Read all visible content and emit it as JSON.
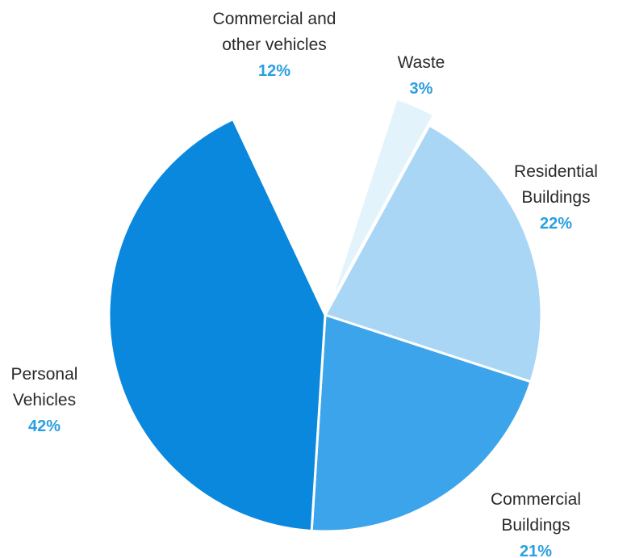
{
  "chart_data": {
    "type": "pie",
    "title": "",
    "slices": [
      {
        "label_lines": [
          "Waste"
        ],
        "value_label": "3%",
        "value": 3,
        "color": "#e3f3fc",
        "exploded": true
      },
      {
        "label_lines": [
          "Residential",
          "Buildings"
        ],
        "value_label": "22%",
        "value": 22,
        "color": "#a9d6f5",
        "exploded": false
      },
      {
        "label_lines": [
          "Commercial",
          "Buildings"
        ],
        "value_label": "21%",
        "value": 21,
        "color": "#3ca4ea",
        "exploded": false
      },
      {
        "label_lines": [
          "Personal",
          "Vehicles"
        ],
        "value_label": "42%",
        "value": 42,
        "color": "#0a88dd",
        "exploded": false
      },
      {
        "label_lines": [
          "Commercial and",
          "other vehicles"
        ],
        "value_label": "12%",
        "value": 12,
        "color": "#ffffff",
        "exploded": false
      }
    ]
  }
}
